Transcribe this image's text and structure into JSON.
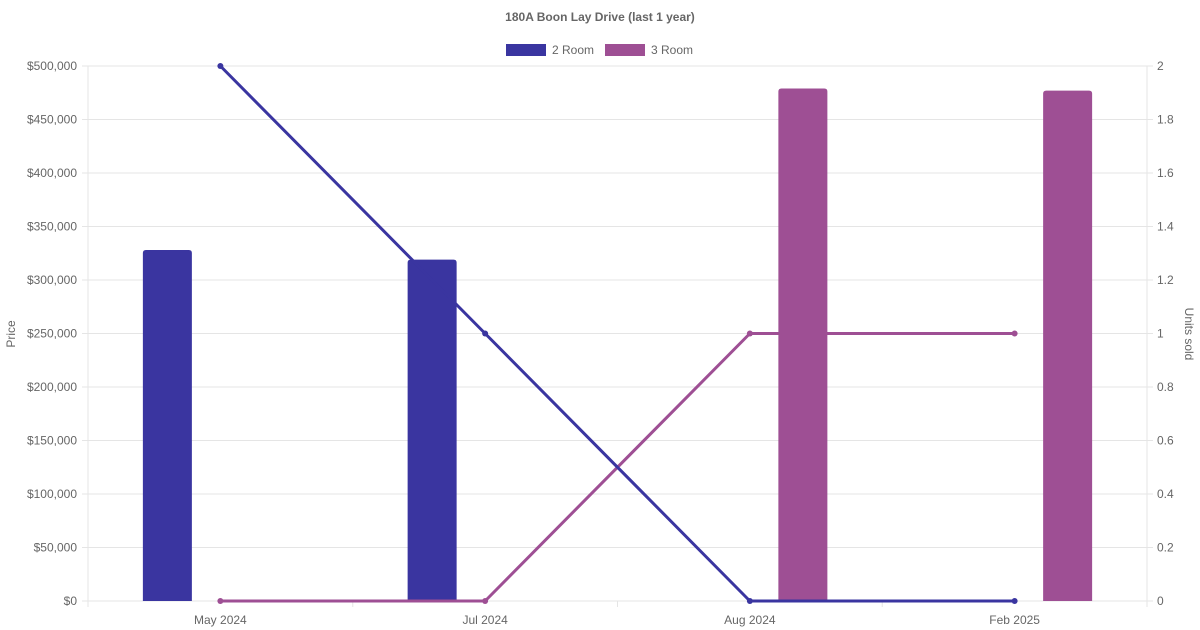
{
  "chart_data": {
    "type": "bar",
    "title": "180A Boon Lay Drive (last 1 year)",
    "categories": [
      "May 2024",
      "Jul 2024",
      "Aug 2024",
      "Feb 2025"
    ],
    "series": [
      {
        "name": "2 Room",
        "color": "#3a35a0",
        "price": [
          328000,
          319000,
          null,
          null
        ],
        "units_sold": [
          2,
          1,
          0,
          0
        ]
      },
      {
        "name": "3 Room",
        "color": "#9e4f94",
        "price": [
          null,
          null,
          479000,
          477000
        ],
        "units_sold": [
          0,
          0,
          1,
          1
        ]
      }
    ],
    "y_left": {
      "label": "Price",
      "range": [
        0,
        500000
      ],
      "ticks": [
        "$0",
        "$50,000",
        "$100,000",
        "$150,000",
        "$200,000",
        "$250,000",
        "$300,000",
        "$350,000",
        "$400,000",
        "$450,000",
        "$500,000"
      ]
    },
    "y_right": {
      "label": "Units sold",
      "range": [
        0,
        2
      ],
      "ticks": [
        "0",
        "0.2",
        "0.4",
        "0.6",
        "0.8",
        "1",
        "1.2",
        "1.4",
        "1.6",
        "1.8",
        "2"
      ]
    },
    "grid": true,
    "legend_position": "top-center"
  }
}
